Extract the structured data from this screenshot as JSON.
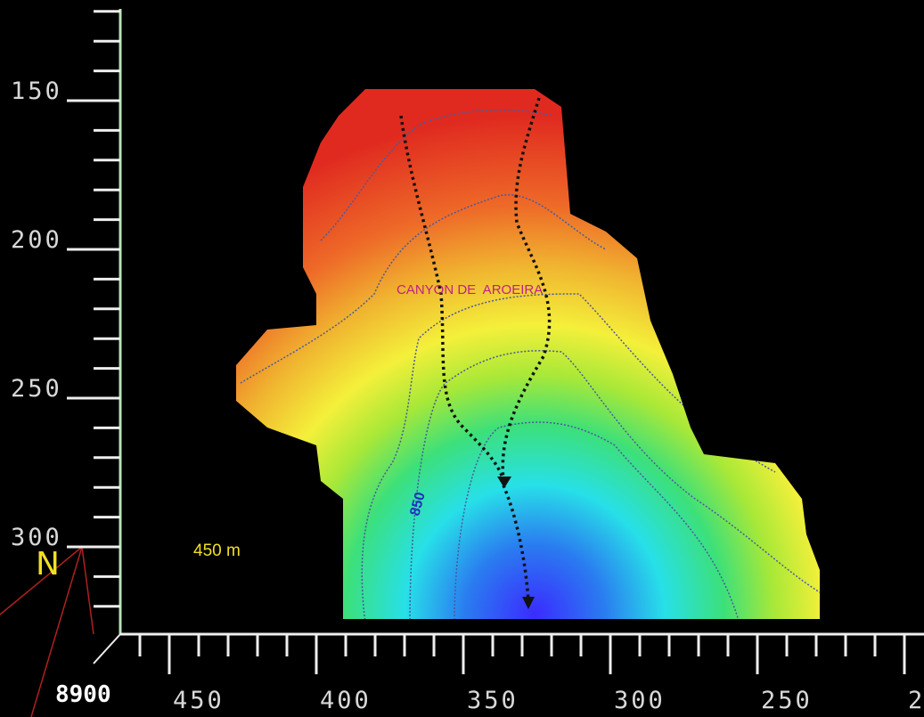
{
  "y_axis": {
    "labels": [
      "150",
      "200",
      "250",
      "300"
    ]
  },
  "x_axis": {
    "labels": [
      "450",
      "400",
      "350",
      "300",
      "250",
      "2"
    ]
  },
  "compass": {
    "north": "N",
    "code": "8900"
  },
  "scale": "450 m",
  "annotations": {
    "canyon": "CANYON DE  AROEIRA",
    "contour": "850"
  }
}
